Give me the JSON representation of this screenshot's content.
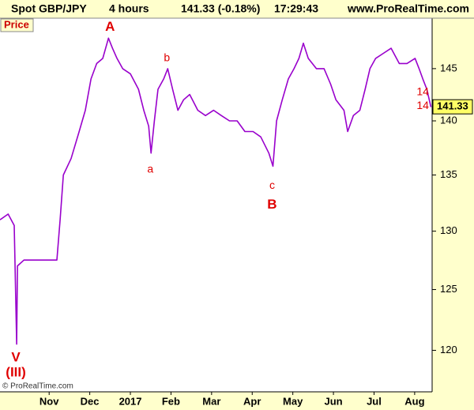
{
  "header": {
    "symbol": "Spot GBP/JPY",
    "interval": "4 hours",
    "quote": "141.33 (-0.18%)",
    "time": "17:29:43",
    "site": "www.ProRealTime.com"
  },
  "chart_data": {
    "type": "line",
    "panel_label": "Price",
    "copyright": "© ProRealTime.com",
    "log_scale": true,
    "last_price": 141.33,
    "xlim": [
      -1.21,
      9.43
    ],
    "ylim": [
      116.7,
      150
    ],
    "xticks": [
      {
        "value": 0,
        "label": "Nov"
      },
      {
        "value": 1,
        "label": "Dec"
      },
      {
        "value": 2,
        "label": "2017"
      },
      {
        "value": 3,
        "label": "Feb"
      },
      {
        "value": 4,
        "label": "Mar"
      },
      {
        "value": 5,
        "label": "Apr"
      },
      {
        "value": 6,
        "label": "May"
      },
      {
        "value": 7,
        "label": "Jun"
      },
      {
        "value": 8,
        "label": "Jul"
      },
      {
        "value": 9,
        "label": "Aug"
      }
    ],
    "yticks": [
      120,
      125,
      130,
      135,
      140,
      145
    ],
    "series": [
      {
        "color": "#9900cc",
        "x": [
          -1.21,
          -1.01,
          -0.86,
          -0.8,
          -0.78,
          -0.62,
          -0.33,
          -0.04,
          0.19,
          0.27,
          0.35,
          0.54,
          0.74,
          0.89,
          1.03,
          1.17,
          1.32,
          1.46,
          1.56,
          1.67,
          1.81,
          2.0,
          2.2,
          2.33,
          2.45,
          2.51,
          2.59,
          2.68,
          2.82,
          2.92,
          3.04,
          3.17,
          3.31,
          3.46,
          3.66,
          3.85,
          4.05,
          4.24,
          4.44,
          4.63,
          4.82,
          5.02,
          5.21,
          5.41,
          5.51,
          5.6,
          5.74,
          5.89,
          6.03,
          6.15,
          6.26,
          6.38,
          6.58,
          6.77,
          6.93,
          7.06,
          7.26,
          7.35,
          7.49,
          7.65,
          7.78,
          7.9,
          8.04,
          8.23,
          8.42,
          8.62,
          8.81,
          9.01,
          9.11,
          9.2,
          9.3,
          9.4
        ],
        "values": [
          131,
          131.5,
          130.5,
          120.5,
          127,
          127.5,
          127.5,
          127.5,
          127.5,
          131,
          135,
          136.5,
          139,
          141,
          144,
          145.5,
          146,
          148,
          147,
          146,
          145,
          144.5,
          143,
          141,
          139.5,
          137,
          140,
          143,
          144,
          145,
          143,
          141,
          142,
          142.5,
          141,
          140.5,
          141,
          140.5,
          140,
          140,
          139,
          139,
          138.5,
          137,
          135.8,
          140,
          142,
          144,
          145,
          146,
          147.5,
          146,
          145,
          145,
          143.5,
          142,
          141,
          139,
          140.5,
          141,
          143,
          145,
          146,
          146.5,
          147,
          145.5,
          145.5,
          146,
          145,
          144,
          143,
          141.3
        ]
      }
    ],
    "annotations": [
      {
        "text": "A",
        "x": 1.5,
        "y": 149.1
      },
      {
        "text": "b",
        "x": 2.9,
        "y": 146.0
      },
      {
        "text": "a",
        "x": 2.49,
        "y": 135.5
      },
      {
        "text": "c",
        "x": 5.49,
        "y": 134.0
      },
      {
        "text": "B",
        "x": 5.49,
        "y": 132.3
      },
      {
        "text": "V",
        "x": -0.82,
        "y": 119.4
      },
      {
        "text": "(III)",
        "x": -0.82,
        "y": 118.2
      },
      {
        "text": "14",
        "x": 9.2,
        "y": 142.7
      },
      {
        "text": "14",
        "x": 9.2,
        "y": 141.4
      }
    ]
  }
}
